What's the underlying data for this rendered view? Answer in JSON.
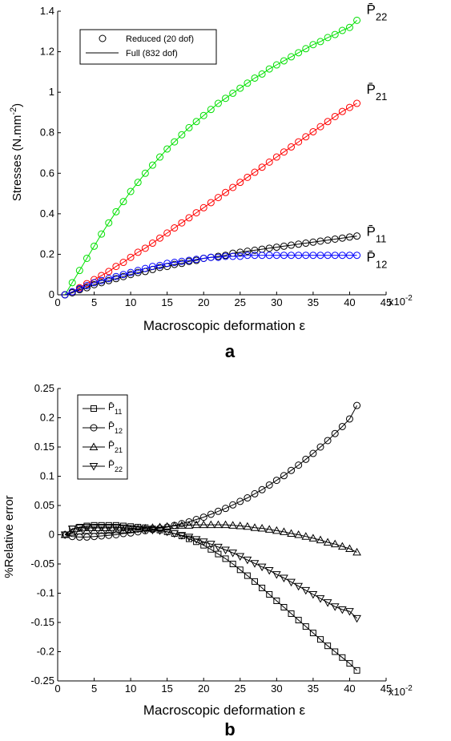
{
  "chart_data": [
    {
      "type": "line",
      "panel_label": "a",
      "xlabel": "Macroscopic deformation ε",
      "ylabel": "Stresses (N.mm",
      "ylabel_sup": "-2",
      "ylabel_close": ")",
      "xlim": [
        0,
        45
      ],
      "ylim": [
        0,
        1.4
      ],
      "xticks": [
        "0",
        "5",
        "10",
        "15",
        "20",
        "25",
        "30",
        "35",
        "40",
        "45"
      ],
      "x_exponent": "x10",
      "x_exponent_sup": "-2",
      "yticks": [
        "0",
        "0.2",
        "0.4",
        "0.6",
        "0.8",
        "1",
        "1.2",
        "1.4"
      ],
      "legend": {
        "position": "top-left",
        "entries": [
          {
            "label": "Reduced (20 dof)",
            "marker": "circle"
          },
          {
            "label": "Full (832 dof)",
            "marker": "line"
          }
        ]
      },
      "x": [
        1,
        2,
        3,
        4,
        5,
        6,
        7,
        8,
        9,
        10,
        11,
        12,
        13,
        14,
        15,
        16,
        17,
        18,
        19,
        20,
        21,
        22,
        23,
        24,
        25,
        26,
        27,
        28,
        29,
        30,
        31,
        32,
        33,
        34,
        35,
        36,
        37,
        38,
        39,
        40,
        41
      ],
      "series": [
        {
          "label": "P̄",
          "sub": "22",
          "color": "#00e000",
          "values": [
            0.0,
            0.06,
            0.12,
            0.18,
            0.24,
            0.3,
            0.355,
            0.41,
            0.46,
            0.51,
            0.555,
            0.6,
            0.64,
            0.68,
            0.72,
            0.755,
            0.79,
            0.825,
            0.855,
            0.885,
            0.915,
            0.945,
            0.97,
            0.995,
            1.02,
            1.045,
            1.07,
            1.09,
            1.115,
            1.135,
            1.155,
            1.175,
            1.195,
            1.215,
            1.235,
            1.25,
            1.27,
            1.285,
            1.305,
            1.32,
            1.355
          ]
        },
        {
          "label": "P̄",
          "sub": "21",
          "color": "#ff0000",
          "values": [
            0.0,
            0.015,
            0.035,
            0.055,
            0.075,
            0.095,
            0.115,
            0.14,
            0.16,
            0.185,
            0.21,
            0.23,
            0.255,
            0.28,
            0.305,
            0.33,
            0.355,
            0.38,
            0.405,
            0.43,
            0.455,
            0.48,
            0.505,
            0.53,
            0.555,
            0.58,
            0.605,
            0.63,
            0.655,
            0.68,
            0.705,
            0.73,
            0.755,
            0.78,
            0.805,
            0.83,
            0.855,
            0.88,
            0.905,
            0.925,
            0.945
          ]
        },
        {
          "label": "P̄",
          "sub": "11",
          "color": "#000000",
          "values": [
            0.0,
            0.01,
            0.025,
            0.035,
            0.05,
            0.06,
            0.07,
            0.08,
            0.09,
            0.1,
            0.11,
            0.115,
            0.125,
            0.135,
            0.14,
            0.15,
            0.155,
            0.165,
            0.17,
            0.18,
            0.185,
            0.19,
            0.195,
            0.205,
            0.21,
            0.215,
            0.22,
            0.225,
            0.23,
            0.235,
            0.24,
            0.245,
            0.25,
            0.255,
            0.26,
            0.265,
            0.27,
            0.275,
            0.28,
            0.285,
            0.29
          ]
        },
        {
          "label": "P̄",
          "sub": "12",
          "color": "#0000ff",
          "values": [
            0.0,
            0.015,
            0.03,
            0.045,
            0.06,
            0.07,
            0.08,
            0.09,
            0.1,
            0.11,
            0.12,
            0.13,
            0.14,
            0.145,
            0.155,
            0.16,
            0.165,
            0.17,
            0.175,
            0.18,
            0.185,
            0.185,
            0.19,
            0.19,
            0.19,
            0.195,
            0.195,
            0.195,
            0.195,
            0.195,
            0.195,
            0.195,
            0.195,
            0.195,
            0.195,
            0.195,
            0.195,
            0.195,
            0.195,
            0.195,
            0.195
          ]
        }
      ]
    },
    {
      "type": "line",
      "panel_label": "b",
      "xlabel": "Macroscopic deformation ε",
      "ylabel": "%Relative error",
      "xlim": [
        0,
        45
      ],
      "ylim": [
        -0.25,
        0.25
      ],
      "xticks": [
        "0",
        "5",
        "10",
        "15",
        "20",
        "25",
        "30",
        "35",
        "40",
        "45"
      ],
      "x_exponent": "x10",
      "x_exponent_sup": "-2",
      "yticks": [
        "-0.25",
        "-0.2",
        "-0.15",
        "-0.1",
        "-0.05",
        "0",
        "0.05",
        "0.1",
        "0.15",
        "0.2",
        "0.25"
      ],
      "legend": {
        "position": "top-left"
      },
      "x": [
        1,
        2,
        3,
        4,
        5,
        6,
        7,
        8,
        9,
        10,
        11,
        12,
        13,
        14,
        15,
        16,
        17,
        18,
        19,
        20,
        21,
        22,
        23,
        24,
        25,
        26,
        27,
        28,
        29,
        30,
        31,
        32,
        33,
        34,
        35,
        36,
        37,
        38,
        39,
        40,
        41
      ],
      "series": [
        {
          "label": "P̄",
          "sub": "11",
          "marker": "square",
          "values": [
            0.0,
            0.01,
            0.013,
            0.015,
            0.016,
            0.016,
            0.016,
            0.016,
            0.015,
            0.014,
            0.013,
            0.012,
            0.01,
            0.008,
            0.005,
            0.002,
            -0.002,
            -0.007,
            -0.012,
            -0.018,
            -0.025,
            -0.033,
            -0.041,
            -0.05,
            -0.06,
            -0.07,
            -0.08,
            -0.091,
            -0.102,
            -0.113,
            -0.124,
            -0.135,
            -0.146,
            -0.157,
            -0.168,
            -0.179,
            -0.19,
            -0.2,
            -0.21,
            -0.22,
            -0.232
          ]
        },
        {
          "label": "P̄",
          "sub": "12",
          "marker": "circle",
          "values": [
            0.0,
            -0.003,
            -0.004,
            -0.004,
            -0.003,
            -0.002,
            -0.001,
            0.0,
            0.002,
            0.003,
            0.005,
            0.007,
            0.009,
            0.011,
            0.013,
            0.016,
            0.019,
            0.022,
            0.026,
            0.03,
            0.035,
            0.04,
            0.045,
            0.051,
            0.057,
            0.063,
            0.07,
            0.077,
            0.085,
            0.093,
            0.101,
            0.11,
            0.119,
            0.129,
            0.139,
            0.15,
            0.161,
            0.173,
            0.185,
            0.198,
            0.221
          ]
        },
        {
          "label": "P̄",
          "sub": "21",
          "marker": "triangle-up",
          "values": [
            0.0,
            0.004,
            0.006,
            0.007,
            0.007,
            0.007,
            0.007,
            0.008,
            0.008,
            0.009,
            0.01,
            0.011,
            0.012,
            0.013,
            0.014,
            0.015,
            0.016,
            0.016,
            0.017,
            0.017,
            0.017,
            0.017,
            0.017,
            0.016,
            0.015,
            0.014,
            0.012,
            0.011,
            0.009,
            0.007,
            0.005,
            0.002,
            0.0,
            -0.003,
            -0.006,
            -0.009,
            -0.013,
            -0.016,
            -0.02,
            -0.024,
            -0.03
          ]
        },
        {
          "label": "P̄",
          "sub": "22",
          "marker": "triangle-down",
          "values": [
            0.0,
            0.01,
            0.012,
            0.013,
            0.013,
            0.013,
            0.013,
            0.013,
            0.012,
            0.011,
            0.01,
            0.009,
            0.008,
            0.007,
            0.005,
            0.002,
            -0.001,
            -0.004,
            -0.008,
            -0.012,
            -0.016,
            -0.021,
            -0.026,
            -0.031,
            -0.037,
            -0.043,
            -0.049,
            -0.055,
            -0.061,
            -0.068,
            -0.074,
            -0.081,
            -0.088,
            -0.095,
            -0.102,
            -0.109,
            -0.116,
            -0.123,
            -0.128,
            -0.131,
            -0.143
          ]
        }
      ]
    }
  ]
}
